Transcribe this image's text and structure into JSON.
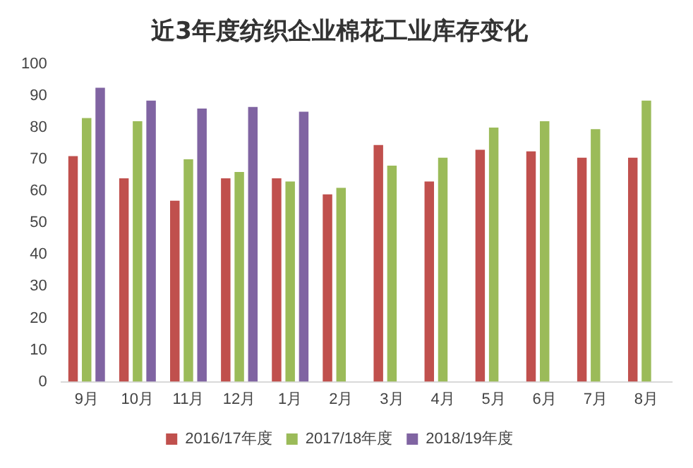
{
  "chart_data": {
    "type": "bar",
    "title": "近3年度纺织企业棉花工业库存变化",
    "categories": [
      "9月",
      "10月",
      "11月",
      "12月",
      "1月",
      "2月",
      "3月",
      "4月",
      "5月",
      "6月",
      "7月",
      "8月"
    ],
    "series": [
      {
        "name": "2016/17年度",
        "color": "#c0504d",
        "values": [
          71,
          64,
          57,
          64,
          64,
          59,
          74.5,
          63,
          73,
          72.5,
          70.5,
          70.5
        ]
      },
      {
        "name": "2017/18年度",
        "color": "#9bbb59",
        "values": [
          83,
          82,
          70,
          66,
          63,
          61,
          68,
          70.5,
          80,
          82,
          79.5,
          88.5
        ]
      },
      {
        "name": "2018/19年度",
        "color": "#8064a2",
        "values": [
          92.5,
          88.5,
          86,
          86.5,
          85,
          null,
          null,
          null,
          null,
          null,
          null,
          null
        ]
      }
    ],
    "ylim": [
      0,
      100
    ],
    "yticks": [
      0,
      10,
      20,
      30,
      40,
      50,
      60,
      70,
      80,
      90,
      100
    ],
    "grid": false,
    "legend": "bottom"
  }
}
